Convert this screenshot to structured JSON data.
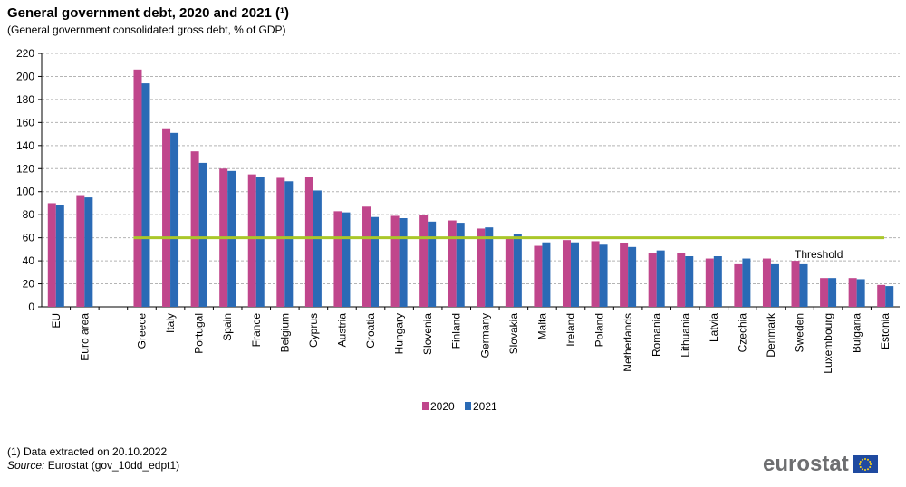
{
  "title": "General government debt, 2020 and 2021 (¹)",
  "subtitle": "(General  government   consolidated gross debt, % of GDP)",
  "footnote": "(1) Data extracted on 20.10.2022",
  "source_label": "Source:",
  "source_text": " Eurostat (gov_10dd_edpt1)",
  "logo_text": "eurostat",
  "colors": {
    "s2020": "#c0468c",
    "s2021": "#2a6ab5",
    "threshold": "#aac72a",
    "grid": "#b4b4b4"
  },
  "chart_data": {
    "type": "bar",
    "categories": [
      "EU",
      "Euro area",
      "",
      "Greece",
      "Italy",
      "Portugal",
      "Spain",
      "France",
      "Belgium",
      "Cyprus",
      "Austria",
      "Croatia",
      "Hungary",
      "Slovenia",
      "Finland",
      "Germany",
      "Slovakia",
      "Malta",
      "Ireland",
      "Poland",
      "Netherlands",
      "Romania",
      "Lithuania",
      "Latvia",
      "Czechia",
      "Denmark",
      "Sweden",
      "Luxembourg",
      "Bulgaria",
      "Estonia"
    ],
    "series": [
      {
        "name": "2020",
        "values": [
          90,
          97,
          null,
          206,
          155,
          135,
          120,
          115,
          112,
          113,
          83,
          87,
          79,
          80,
          75,
          68,
          59,
          53,
          58,
          57,
          55,
          47,
          47,
          42,
          37,
          42,
          40,
          25,
          25,
          19
        ]
      },
      {
        "name": "2021",
        "values": [
          88,
          95,
          null,
          194,
          151,
          125,
          118,
          113,
          109,
          101,
          82,
          78,
          77,
          74,
          73,
          69,
          63,
          56,
          56,
          54,
          52,
          49,
          44,
          44,
          42,
          37,
          37,
          25,
          24,
          18
        ]
      }
    ],
    "threshold": {
      "label": "Threshold",
      "value": 60
    },
    "y_ticks": [
      0,
      20,
      40,
      60,
      80,
      100,
      120,
      140,
      160,
      180,
      200,
      220
    ],
    "ylim": [
      0,
      220
    ],
    "grid": true,
    "legend": [
      "2020",
      "2021"
    ],
    "legend_position": "bottom-center"
  }
}
